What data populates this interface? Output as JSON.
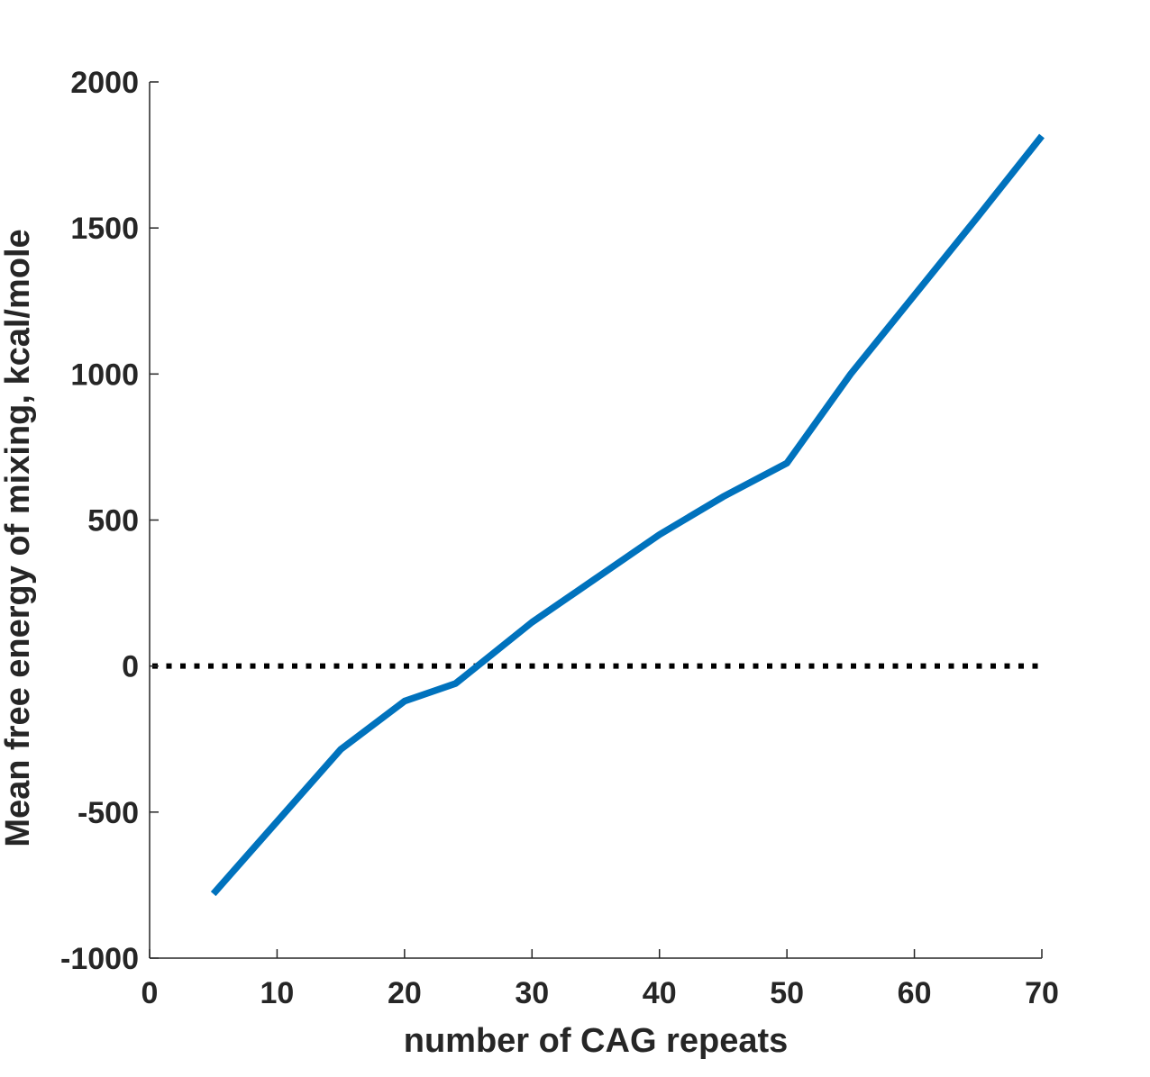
{
  "chart_data": {
    "type": "line",
    "title": "",
    "xlabel": "number of CAG repeats",
    "ylabel": "Mean free energy of mixing, kcal/mole",
    "xlim": [
      0,
      70
    ],
    "ylim": [
      -1000,
      2000
    ],
    "xticks": [
      0,
      10,
      20,
      30,
      40,
      50,
      60,
      70
    ],
    "yticks": [
      -1000,
      -500,
      0,
      500,
      1000,
      1500,
      2000
    ],
    "grid": false,
    "legend": "none",
    "series": [
      {
        "color": "#0072BD",
        "x": [
          5,
          15,
          20,
          24,
          30,
          35,
          40,
          45,
          50,
          55,
          60,
          65,
          70
        ],
        "y": [
          -780,
          -285,
          -120,
          -60,
          150,
          300,
          450,
          580,
          695,
          1000,
          1270,
          1540,
          1815
        ]
      }
    ],
    "reference_line": {
      "y": 0,
      "x_range": [
        0,
        70
      ],
      "style": "dotted",
      "color": "#000000"
    }
  }
}
